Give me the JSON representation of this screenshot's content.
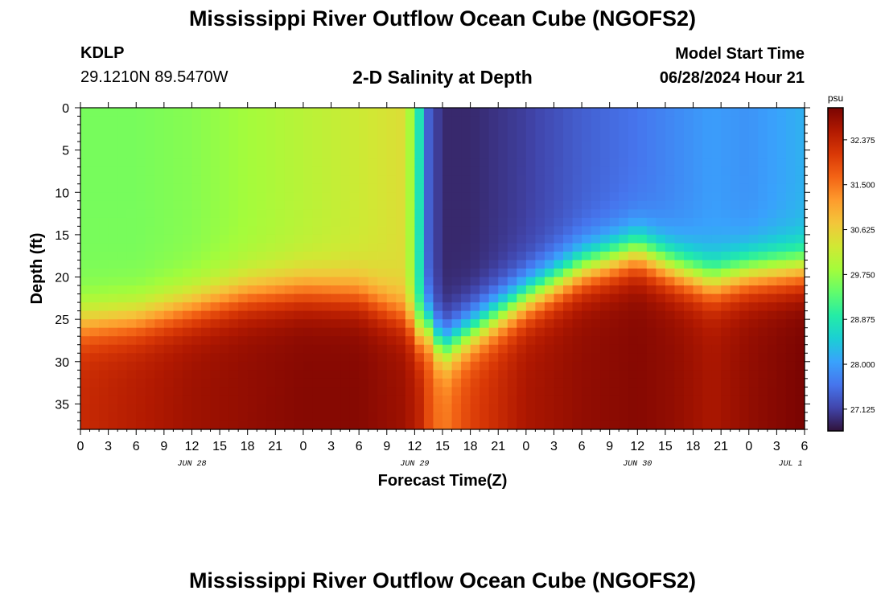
{
  "header": {
    "title": "Mississippi River Outflow Ocean Cube (NGOFS2)",
    "station_id": "KDLP",
    "coordinates": "29.1210N  89.5470W",
    "subtitle": "2-D Salinity at Depth",
    "model_start_label": "Model Start Time",
    "model_start_value": "06/28/2024 Hour 21"
  },
  "footer": {
    "title": "Mississippi River Outflow Ocean Cube (NGOFS2)"
  },
  "chart_data": {
    "type": "heatmap",
    "ylabel": "Depth (ft)",
    "xlabel": "Forecast Time(Z)",
    "colorbar_unit": "psu",
    "colorbar_ticks": [
      "27.125",
      "28.000",
      "28.875",
      "29.750",
      "30.625",
      "31.500",
      "32.375"
    ],
    "colorbar_range": [
      26.7,
      33.0
    ],
    "y_range": [
      0,
      38
    ],
    "y_inverted": true,
    "y_ticks": [
      0,
      5,
      10,
      15,
      20,
      25,
      30,
      35
    ],
    "x_range_hours": [
      0,
      78
    ],
    "x_tick_labels": [
      "0",
      "3",
      "6",
      "9",
      "12",
      "15",
      "18",
      "21",
      "0",
      "3",
      "6",
      "9",
      "12",
      "15",
      "18",
      "21",
      "0",
      "3",
      "6",
      "9",
      "12",
      "15",
      "18",
      "21",
      "0",
      "3",
      "6"
    ],
    "date_labels": [
      {
        "label": "JUN 28",
        "hour": 12
      },
      {
        "label": "JUN 29",
        "hour": 36
      },
      {
        "label": "JUN 30",
        "hour": 60
      },
      {
        "label": "JUL 1",
        "hour": 76.5
      }
    ],
    "colormap": [
      "#30123b",
      "#4145ab",
      "#4675ed",
      "#39a2fc",
      "#1bcfd4",
      "#24eca6",
      "#61fc6c",
      "#a4fc3b",
      "#d1e834",
      "#f3c63a",
      "#fe9b2d",
      "#f36315",
      "#d93806",
      "#b11901",
      "#7a0402"
    ],
    "profile_columns": [
      {
        "hour": 0,
        "surface": 29.55,
        "halocline_ft": 25.5,
        "bottom": 32.3
      },
      {
        "hour": 6,
        "surface": 29.55,
        "halocline_ft": 25.0,
        "bottom": 32.5
      },
      {
        "hour": 12,
        "surface": 29.65,
        "halocline_ft": 23.5,
        "bottom": 32.7
      },
      {
        "hour": 18,
        "surface": 29.85,
        "halocline_ft": 22.0,
        "bottom": 32.8
      },
      {
        "hour": 24,
        "surface": 30.05,
        "halocline_ft": 21.5,
        "bottom": 32.9
      },
      {
        "hour": 30,
        "surface": 30.25,
        "halocline_ft": 22.0,
        "bottom": 32.9
      },
      {
        "hour": 35,
        "surface": 30.45,
        "halocline_ft": 24.5,
        "bottom": 32.7
      },
      {
        "hour": 36.5,
        "surface": 28.8,
        "halocline_ft": 26.5,
        "bottom": 32.4
      },
      {
        "hour": 37.5,
        "surface": 27.4,
        "halocline_ft": 26.0,
        "bottom": 31.9
      },
      {
        "hour": 39,
        "surface": 26.9,
        "halocline_ft": 28.5,
        "bottom": 31.4
      },
      {
        "hour": 42,
        "surface": 26.9,
        "halocline_ft": 26.5,
        "bottom": 32.0
      },
      {
        "hour": 48,
        "surface": 27.1,
        "halocline_ft": 22.5,
        "bottom": 32.6
      },
      {
        "hour": 54,
        "surface": 27.4,
        "halocline_ft": 19.0,
        "bottom": 32.8
      },
      {
        "hour": 60,
        "surface": 27.6,
        "halocline_ft": 17.0,
        "bottom": 32.9
      },
      {
        "hour": 64,
        "surface": 27.8,
        "halocline_ft": 19.0,
        "bottom": 32.8
      },
      {
        "hour": 68,
        "surface": 28.0,
        "halocline_ft": 20.5,
        "bottom": 32.6
      },
      {
        "hour": 72,
        "surface": 27.9,
        "halocline_ft": 19.5,
        "bottom": 32.8
      },
      {
        "hour": 78,
        "surface": 28.2,
        "halocline_ft": 19.0,
        "bottom": 33.0
      }
    ],
    "grid": false
  }
}
